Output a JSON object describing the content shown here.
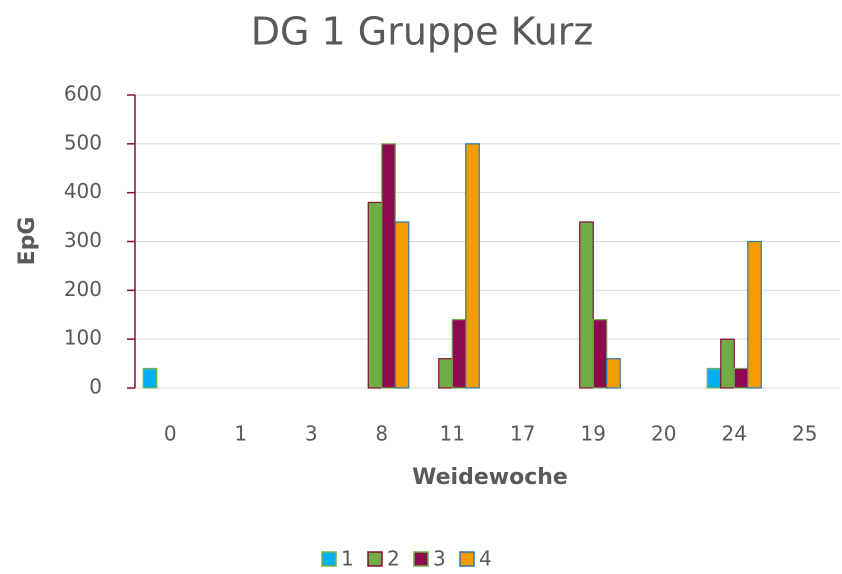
{
  "chart_data": {
    "type": "bar",
    "title": "DG 1 Gruppe Kurz",
    "x_label": "Weidewoche",
    "y_label": "EpG",
    "categories": [
      "0",
      "1",
      "3",
      "8",
      "11",
      "17",
      "19",
      "20",
      "24",
      "25"
    ],
    "series": [
      {
        "name": "1",
        "color": "#00b0f0",
        "border_color": "#7cb342",
        "values": [
          40,
          0,
          0,
          0,
          0,
          0,
          0,
          0,
          40,
          0
        ]
      },
      {
        "name": "2",
        "color": "#70ad47",
        "border_color": "#8b0a3a",
        "values": [
          0,
          0,
          0,
          380,
          60,
          0,
          340,
          0,
          100,
          0
        ]
      },
      {
        "name": "3",
        "color": "#8b0a50",
        "border_color": "#70ad47",
        "values": [
          0,
          0,
          0,
          500,
          140,
          0,
          140,
          0,
          40,
          0
        ]
      },
      {
        "name": "4",
        "color": "#f59d00",
        "border_color": "#2e75b6",
        "values": [
          0,
          0,
          0,
          340,
          500,
          0,
          60,
          0,
          300,
          0
        ]
      }
    ],
    "ylim": [
      0,
      600
    ],
    "yticks": [
      0,
      100,
      200,
      300,
      400,
      500,
      600
    ],
    "grid": true,
    "legend": "bottom"
  }
}
